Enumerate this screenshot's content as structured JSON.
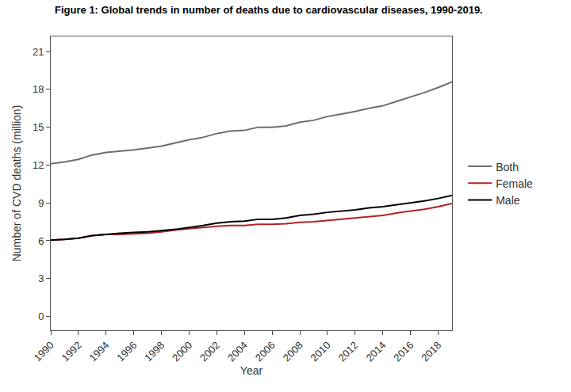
{
  "chart_data": {
    "type": "line",
    "title": "Figure 1: Global trends in number of deaths due to cardiovascular diseases, 1990-2019.",
    "x_label": "Year",
    "y_label": "Number of CVD deaths (million)",
    "x": [
      1990,
      1991,
      1992,
      1993,
      1994,
      1995,
      1996,
      1997,
      1998,
      1999,
      2000,
      2001,
      2002,
      2003,
      2004,
      2005,
      2006,
      2007,
      2008,
      2009,
      2010,
      2011,
      2012,
      2013,
      2014,
      2015,
      2016,
      2017,
      2018,
      2019
    ],
    "series": [
      {
        "name": "Both",
        "color": "#6e6e6e",
        "values": [
          12.1,
          12.25,
          12.45,
          12.8,
          13.0,
          13.1,
          13.2,
          13.35,
          13.5,
          13.75,
          14.0,
          14.2,
          14.5,
          14.7,
          14.75,
          15.0,
          15.0,
          15.1,
          15.4,
          15.55,
          15.85,
          16.05,
          16.25,
          16.5,
          16.7,
          17.05,
          17.4,
          17.75,
          18.15,
          18.6
        ]
      },
      {
        "name": "Female",
        "color": "#b22222",
        "values": [
          6.05,
          6.1,
          6.2,
          6.4,
          6.5,
          6.5,
          6.55,
          6.6,
          6.7,
          6.85,
          6.95,
          7.05,
          7.15,
          7.2,
          7.2,
          7.3,
          7.3,
          7.35,
          7.45,
          7.5,
          7.6,
          7.7,
          7.8,
          7.9,
          8.0,
          8.2,
          8.35,
          8.5,
          8.7,
          8.95
        ]
      },
      {
        "name": "Male",
        "color": "#000000",
        "values": [
          6.05,
          6.1,
          6.2,
          6.4,
          6.5,
          6.6,
          6.65,
          6.7,
          6.8,
          6.9,
          7.05,
          7.2,
          7.4,
          7.5,
          7.55,
          7.7,
          7.7,
          7.8,
          8.0,
          8.1,
          8.25,
          8.35,
          8.45,
          8.6,
          8.7,
          8.85,
          9.0,
          9.15,
          9.35,
          9.6
        ]
      }
    ],
    "xlim": [
      1990,
      2019
    ],
    "xticks": [
      1990,
      1992,
      1994,
      1996,
      1998,
      2000,
      2002,
      2004,
      2006,
      2008,
      2010,
      2012,
      2014,
      2016,
      2018
    ],
    "ylim": [
      -1.1,
      22.2
    ],
    "yticks": [
      0,
      3,
      6,
      9,
      12,
      15,
      18,
      21
    ],
    "grid": false,
    "legend": "right"
  }
}
